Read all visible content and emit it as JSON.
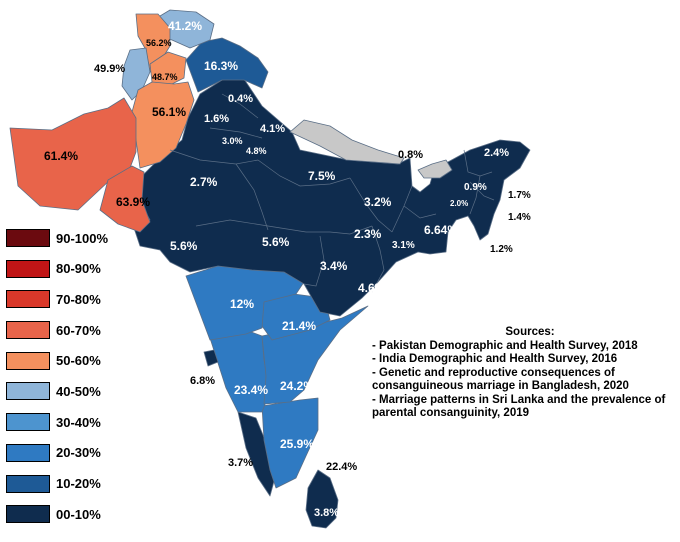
{
  "legend": [
    {
      "label": "90-100%",
      "color": "#6b0a0f"
    },
    {
      "label": "80-90%",
      "color": "#c01516"
    },
    {
      "label": "70-80%",
      "color": "#d9382a"
    },
    {
      "label": "60-70%",
      "color": "#e8644a"
    },
    {
      "label": "50-60%",
      "color": "#f4905e"
    },
    {
      "label": "40-50%",
      "color": "#8fb5d9"
    },
    {
      "label": "30-40%",
      "color": "#4d94cf"
    },
    {
      "label": "20-30%",
      "color": "#2f7ac2"
    },
    {
      "label": "10-20%",
      "color": "#1e5a96"
    },
    {
      "label": "00-10%",
      "color": "#0f2c4e"
    }
  ],
  "sources": {
    "title": "Sources:",
    "items": [
      "- Pakistan Demographic and Health Survey, 2018",
      "- India Demographic and Health Survey, 2016",
      "- Genetic and reproductive consequences of consanguineous marriage in Bangladesh, 2020",
      "- Marriage patterns in Sri Lanka and the prevalence of parental consanguinity, 2019"
    ]
  },
  "colors": {
    "no_data": "#c8c8c8",
    "border": "#5a6e86"
  },
  "regions": [
    {
      "name": "Gilgit-Baltistan",
      "value": "41.2%",
      "band": "40-50%"
    },
    {
      "name": "Azad Kashmir",
      "value": "56.2%",
      "band": "50-60%"
    },
    {
      "name": "Khyber Pakhtunkhwa",
      "value": "49.9%",
      "band": "40-50%"
    },
    {
      "name": "Islamabad",
      "value": "48.7%",
      "band": "40-50%"
    },
    {
      "name": "Jammu and Kashmir",
      "value": "16.3%",
      "band": "10-20%"
    },
    {
      "name": "Punjab (Pakistan)",
      "value": "56.1%",
      "band": "50-60%"
    },
    {
      "name": "Balochistan",
      "value": "61.4%",
      "band": "60-70%"
    },
    {
      "name": "Sindh",
      "value": "63.9%",
      "band": "60-70%"
    },
    {
      "name": "Himachal Pradesh",
      "value": "0.4%",
      "band": "00-10%"
    },
    {
      "name": "Punjab (India)",
      "value": "1.6%",
      "band": "00-10%"
    },
    {
      "name": "Uttarakhand",
      "value": "4.1%",
      "band": "00-10%"
    },
    {
      "name": "Haryana",
      "value": "3.0%",
      "band": "00-10%"
    },
    {
      "name": "Delhi",
      "value": "4.8%",
      "band": "00-10%"
    },
    {
      "name": "Rajasthan",
      "value": "2.7%",
      "band": "00-10%"
    },
    {
      "name": "Uttar Pradesh",
      "value": "7.5%",
      "band": "00-10%"
    },
    {
      "name": "Sikkim",
      "value": "0.8%",
      "band": "00-10%"
    },
    {
      "name": "Arunachal Pradesh",
      "value": "2.4%",
      "band": "00-10%"
    },
    {
      "name": "Assam",
      "value": "0.9%",
      "band": "00-10%"
    },
    {
      "name": "Nagaland",
      "value": "1.7%",
      "band": "00-10%"
    },
    {
      "name": "Meghalaya",
      "value": "2.0%",
      "band": "00-10%"
    },
    {
      "name": "Manipur",
      "value": "1.4%",
      "band": "00-10%"
    },
    {
      "name": "Bihar",
      "value": "3.2%",
      "band": "00-10%"
    },
    {
      "name": "Gujarat",
      "value": "5.6%",
      "band": "00-10%"
    },
    {
      "name": "Madhya Pradesh",
      "value": "5.6%",
      "band": "00-10%"
    },
    {
      "name": "Jharkhand",
      "value": "2.3%",
      "band": "00-10%"
    },
    {
      "name": "West Bengal",
      "value": "3.1%",
      "band": "00-10%"
    },
    {
      "name": "Bangladesh",
      "value": "6.64%",
      "band": "00-10%"
    },
    {
      "name": "Mizoram",
      "value": "1.2%",
      "band": "00-10%"
    },
    {
      "name": "Chhattisgarh",
      "value": "3.4%",
      "band": "00-10%"
    },
    {
      "name": "Odisha",
      "value": "4.6%",
      "band": "00-10%"
    },
    {
      "name": "Maharashtra",
      "value": "12%",
      "band": "10-20%"
    },
    {
      "name": "Telangana",
      "value": "21.4%",
      "band": "20-30%"
    },
    {
      "name": "Goa",
      "value": "6.8%",
      "band": "00-10%"
    },
    {
      "name": "Karnataka",
      "value": "23.4%",
      "band": "20-30%"
    },
    {
      "name": "Andhra Pradesh",
      "value": "24.2%",
      "band": "20-30%"
    },
    {
      "name": "Tamil Nadu",
      "value": "25.9%",
      "band": "20-30%"
    },
    {
      "name": "Kerala",
      "value": "3.7%",
      "band": "00-10%"
    },
    {
      "name": "Puducherry",
      "value": "22.4%",
      "band": "20-30%"
    },
    {
      "name": "Sri Lanka",
      "value": "3.8%",
      "band": "00-10%"
    }
  ]
}
